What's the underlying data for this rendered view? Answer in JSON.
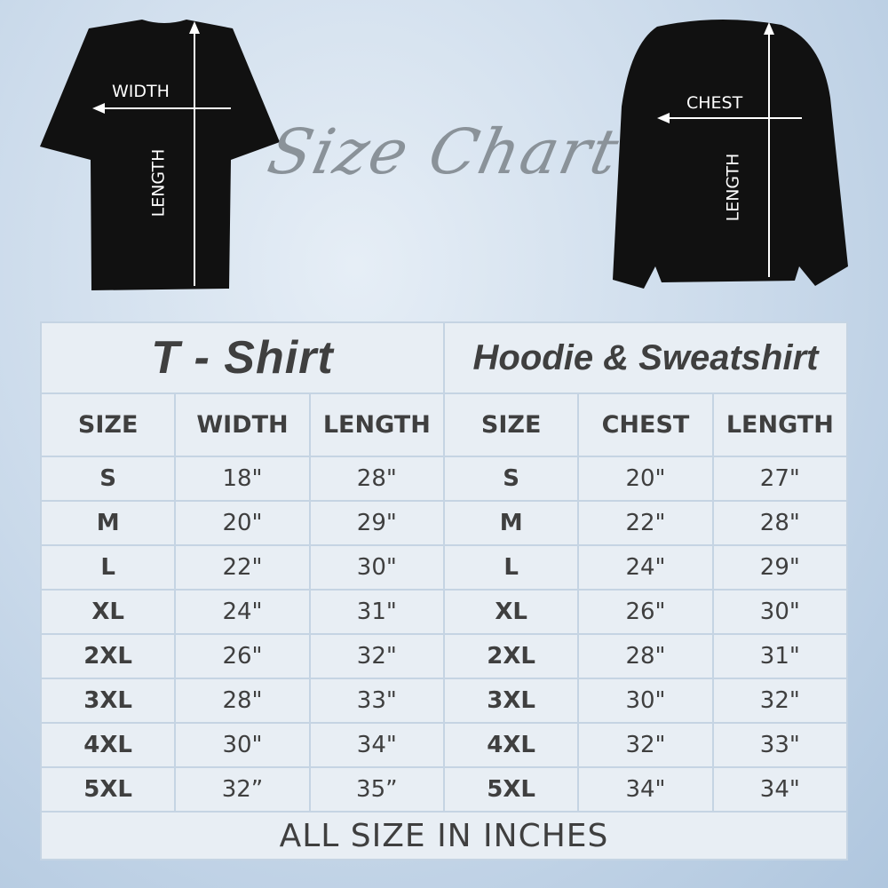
{
  "heading": "Size Chart",
  "tshirt_labels": {
    "width": "WIDTH",
    "length": "LENGTH"
  },
  "hoodie_labels": {
    "chest": "CHEST",
    "length": "LENGTH"
  },
  "tshirt": {
    "title": "T - Shirt",
    "headers": [
      "SIZE",
      "WIDTH",
      "LENGTH"
    ],
    "rows": [
      [
        "S",
        "18\"",
        "28\""
      ],
      [
        "M",
        "20\"",
        "29\""
      ],
      [
        "L",
        "22\"",
        "30\""
      ],
      [
        "XL",
        "24\"",
        "31\""
      ],
      [
        "2XL",
        "26\"",
        "32\""
      ],
      [
        "3XL",
        "28\"",
        "33\""
      ],
      [
        "4XL",
        "30\"",
        "34\""
      ],
      [
        "5XL",
        "32”",
        "35”"
      ]
    ]
  },
  "hoodie": {
    "title": "Hoodie & Sweatshirt",
    "headers": [
      "SIZE",
      "CHEST",
      "LENGTH"
    ],
    "rows": [
      [
        "S",
        "20\"",
        "27\""
      ],
      [
        "M",
        "22\"",
        "28\""
      ],
      [
        "L",
        "24\"",
        "29\""
      ],
      [
        "XL",
        "26\"",
        "30\""
      ],
      [
        "2XL",
        "28\"",
        "31\""
      ],
      [
        "3XL",
        "30\"",
        "32\""
      ],
      [
        "4XL",
        "32\"",
        "33\""
      ],
      [
        "5XL",
        "34\"",
        "34\""
      ]
    ]
  },
  "footer": "ALL SIZE IN INCHES",
  "colors": {
    "cell": "#e8eef4",
    "border": "#c5d4e3",
    "text": "#3f3f3f",
    "garment": "#111111"
  }
}
